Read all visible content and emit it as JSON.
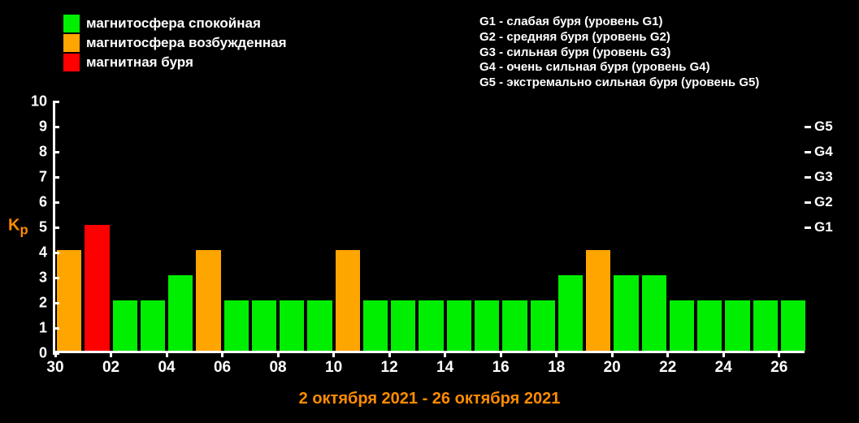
{
  "colors": {
    "calm": "#00ee00",
    "excited": "#ffa500",
    "storm": "#ff0000",
    "bg": "#000000",
    "axis": "#ffffff",
    "text": "#ffffff",
    "accent": "#ff8c00"
  },
  "legend": [
    {
      "color_key": "calm",
      "label": "магнитосфера спокойная"
    },
    {
      "color_key": "excited",
      "label": "магнитосфера возбужденная"
    },
    {
      "color_key": "storm",
      "label": "магнитная буря"
    }
  ],
  "g_legend": [
    "G1 - слабая буря (уровень G1)",
    "G2 - средняя буря (уровень G2)",
    "G3 - сильная буря (уровень G3)",
    "G4 - очень сильная буря (уровень G4)",
    "G5 - экстремально сильная буря (уровень G5)"
  ],
  "chart": {
    "type": "bar",
    "y_axis_label": "Kp",
    "y_axis_label_sub": "p",
    "ylim": [
      0,
      10
    ],
    "yticks": [
      0,
      1,
      2,
      3,
      4,
      5,
      6,
      7,
      8,
      9,
      10
    ],
    "right_ticks": [
      {
        "value": 5,
        "label": "G1"
      },
      {
        "value": 6,
        "label": "G2"
      },
      {
        "value": 7,
        "label": "G3"
      },
      {
        "value": 8,
        "label": "G4"
      },
      {
        "value": 9,
        "label": "G5"
      }
    ],
    "x_title": "2 октября 2021 - 26 октября 2021",
    "x_tick_labels": [
      "30",
      "02",
      "04",
      "06",
      "08",
      "10",
      "12",
      "14",
      "16",
      "18",
      "20",
      "22",
      "24",
      "26"
    ],
    "bars": [
      {
        "value": 4,
        "color_key": "excited"
      },
      {
        "value": 5,
        "color_key": "storm"
      },
      {
        "value": 2,
        "color_key": "calm"
      },
      {
        "value": 2,
        "color_key": "calm"
      },
      {
        "value": 3,
        "color_key": "calm"
      },
      {
        "value": 4,
        "color_key": "excited"
      },
      {
        "value": 2,
        "color_key": "calm"
      },
      {
        "value": 2,
        "color_key": "calm"
      },
      {
        "value": 2,
        "color_key": "calm"
      },
      {
        "value": 2,
        "color_key": "calm"
      },
      {
        "value": 4,
        "color_key": "excited"
      },
      {
        "value": 2,
        "color_key": "calm"
      },
      {
        "value": 2,
        "color_key": "calm"
      },
      {
        "value": 2,
        "color_key": "calm"
      },
      {
        "value": 2,
        "color_key": "calm"
      },
      {
        "value": 2,
        "color_key": "calm"
      },
      {
        "value": 2,
        "color_key": "calm"
      },
      {
        "value": 2,
        "color_key": "calm"
      },
      {
        "value": 3,
        "color_key": "calm"
      },
      {
        "value": 4,
        "color_key": "excited"
      },
      {
        "value": 3,
        "color_key": "calm"
      },
      {
        "value": 3,
        "color_key": "calm"
      },
      {
        "value": 2,
        "color_key": "calm"
      },
      {
        "value": 2,
        "color_key": "calm"
      },
      {
        "value": 2,
        "color_key": "calm"
      },
      {
        "value": 2,
        "color_key": "calm"
      },
      {
        "value": 2,
        "color_key": "calm"
      }
    ]
  }
}
